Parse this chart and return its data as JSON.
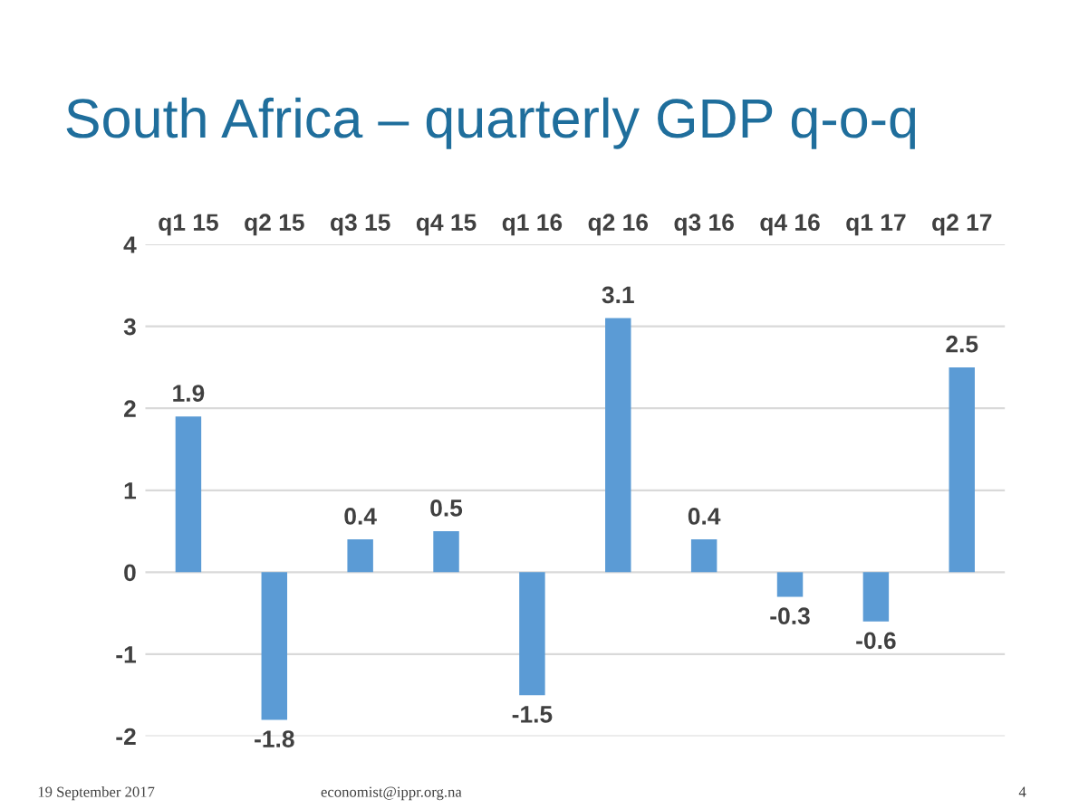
{
  "chart_data": {
    "type": "bar",
    "title": "South Africa – quarterly GDP q-o-q",
    "categories": [
      "q1 15",
      "q2 15",
      "q3 15",
      "q4 15",
      "q1 16",
      "q2 16",
      "q3 16",
      "q4 16",
      "q1 17",
      "q2 17"
    ],
    "values": [
      1.9,
      -1.8,
      0.4,
      0.5,
      -1.5,
      3.1,
      0.4,
      -0.3,
      -0.6,
      2.5
    ],
    "color": "#5b9bd5",
    "ylim": [
      -2,
      4
    ],
    "yticks": [
      -2,
      -1,
      0,
      1,
      2,
      3,
      4
    ],
    "grid": "y",
    "data_labels": true,
    "annotations": [
      "19 September 2017",
      "economist@ippr.org.na",
      "4"
    ]
  }
}
